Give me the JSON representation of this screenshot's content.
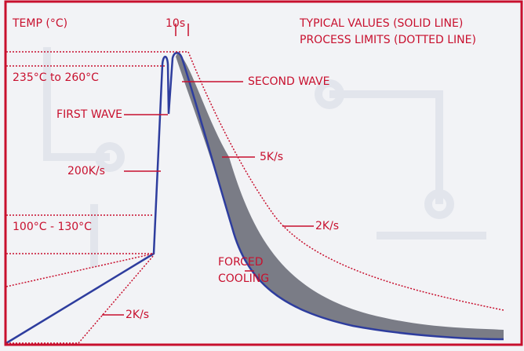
{
  "labels": {
    "temp": "TEMP (°C)",
    "time": "10s",
    "typical": "TYPICAL VALUES (SOLID LINE)",
    "limits": "PROCESS LIMITS (DOTTED LINE)",
    "peak_range": "235°C to 260°C",
    "second_wave": "SECOND WAVE",
    "first_wave": "FIRST WAVE",
    "heat_rate": "200K/s",
    "cool_rate": "5K/s",
    "limit_rate": "2K/s",
    "preheat_range": "100°C - 130°C",
    "forced_1": "FORCED",
    "forced_2": "COOLING",
    "preheat_rate": "2K/s"
  }
}
